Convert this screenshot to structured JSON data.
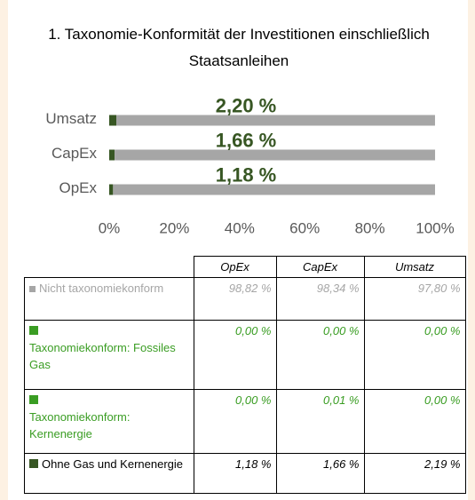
{
  "chart_data": {
    "type": "bar",
    "orientation": "horizontal",
    "stacked": true,
    "title": "1. Taxonomie-Konformität der Investitionen einschließlich Staatsanleihen",
    "categories": [
      "Umsatz",
      "CapEx",
      "OpEx"
    ],
    "series": [
      {
        "color": "#375623",
        "values": [
          2.19,
          1.66,
          1.18
        ]
      },
      {
        "color": "#3a9d23",
        "values": [
          0.0,
          0.0,
          0.0
        ]
      },
      {
        "color": "#3a9d23",
        "values": [
          0.0,
          0.01,
          0.0
        ]
      },
      {
        "color": "#a6a6a6",
        "values": [
          97.8,
          98.34,
          98.82
        ]
      }
    ],
    "annotations": [
      "2,20 %",
      "1,66 %",
      "1,18 %"
    ],
    "xlim": [
      0,
      100
    ],
    "xticks": [
      {
        "value": 0,
        "label": "0%"
      },
      {
        "value": 20,
        "label": "20%"
      },
      {
        "value": 40,
        "label": "40%"
      },
      {
        "value": 60,
        "label": "60%"
      },
      {
        "value": 80,
        "label": "80%"
      },
      {
        "value": 100,
        "label": "100%"
      }
    ]
  },
  "table": {
    "header": [
      "OpEx",
      "CapEx",
      "Umsatz"
    ],
    "rows": [
      {
        "label": "Nicht taxonomiekonform",
        "cells": [
          "98,82 %",
          "98,34 %",
          "97,80 %"
        ]
      },
      {
        "label": "Taxonomiekonform: Fossiles Gas",
        "cells": [
          "0,00 %",
          "0,00 %",
          "0,00 %"
        ]
      },
      {
        "label": "Taxonomiekonform: Kernenergie",
        "cells": [
          "0,00 %",
          "0,01 %",
          "0,00 %"
        ]
      },
      {
        "label": "Ohne Gas und Kernenergie",
        "cells": [
          "1,18 %",
          "1,66 %",
          "2,19 %"
        ]
      }
    ]
  }
}
